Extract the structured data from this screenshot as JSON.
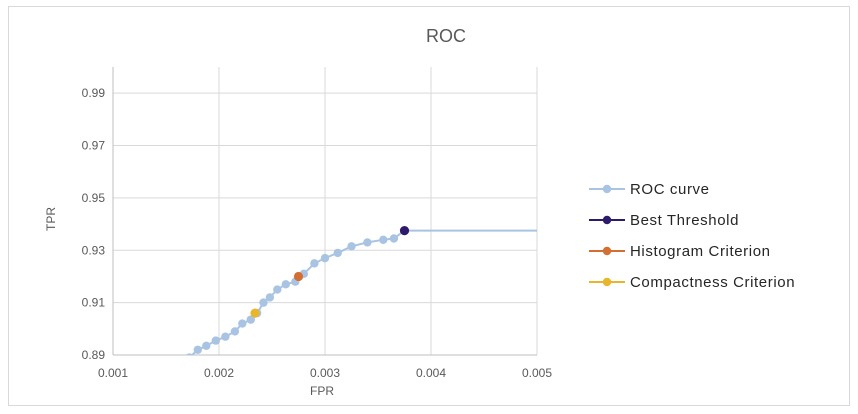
{
  "chart_data": {
    "type": "scatter",
    "title": "ROC",
    "xlabel": "FPR",
    "ylabel": "TPR",
    "xlim": [
      0.001,
      0.005
    ],
    "ylim": [
      0.89,
      1.0
    ],
    "x_ticks": [
      "0.001",
      "0.002",
      "0.003",
      "0.004",
      "0.005"
    ],
    "y_ticks": [
      "0.89",
      "0.91",
      "0.93",
      "0.95",
      "0.97",
      "0.99"
    ],
    "grid": true,
    "legend_position": "right",
    "series": [
      {
        "name": "ROC curve",
        "color": "#a9c4e3",
        "style": "line-markers",
        "x": [
          0.00165,
          0.00172,
          0.0018,
          0.00188,
          0.00197,
          0.00206,
          0.00215,
          0.00222,
          0.0023,
          0.00236,
          0.00242,
          0.00248,
          0.00255,
          0.00263,
          0.00272,
          0.0028,
          0.0029,
          0.003,
          0.00312,
          0.00325,
          0.0034,
          0.00355,
          0.00365,
          0.00375,
          0.0039,
          0.0045,
          0.005
        ],
        "y": [
          0.887,
          0.889,
          0.892,
          0.8935,
          0.8955,
          0.897,
          0.899,
          0.902,
          0.9035,
          0.906,
          0.91,
          0.912,
          0.915,
          0.917,
          0.918,
          0.921,
          0.925,
          0.927,
          0.929,
          0.9315,
          0.933,
          0.934,
          0.9345,
          0.9375,
          0.9375,
          0.9375,
          0.9375
        ],
        "marker_count": 24
      },
      {
        "name": "Best Threshold",
        "color": "#2e1a6b",
        "x": [
          0.00375
        ],
        "y": [
          0.9375
        ]
      },
      {
        "name": "Histogram Criterion",
        "color": "#d46f34",
        "x": [
          0.00275
        ],
        "y": [
          0.92
        ]
      },
      {
        "name": "Compactness Criterion",
        "color": "#e8b62d",
        "x": [
          0.00234
        ],
        "y": [
          0.906
        ]
      }
    ]
  }
}
